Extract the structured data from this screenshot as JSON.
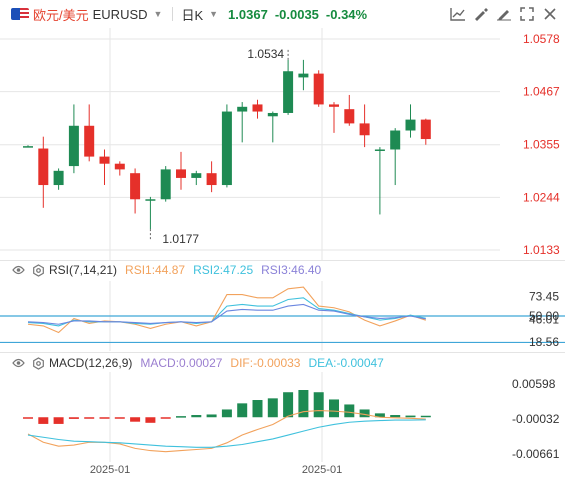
{
  "header": {
    "pair_cn": "欧元/美元",
    "pair_code": "EURUSD",
    "timeframe": "日K",
    "price": "1.0367",
    "change": "-0.0035",
    "change_pct": "-0.34%"
  },
  "colors": {
    "up": "#e5302a",
    "down": "#1e8a53",
    "rsi1": "#f2a25c",
    "rsi2": "#3fc1dd",
    "rsi3": "#6a86e0",
    "macd": "#9b7fd0",
    "dif": "#f2a25c",
    "dea": "#3fc1dd",
    "up_text": "#e5302a",
    "grid": "#e6e6e6"
  },
  "icons": [
    "compare-chart-icon",
    "draw-tool-icon",
    "pencil-icon",
    "fullscreen-icon",
    "close-icon"
  ],
  "price_axis": {
    "labels": [
      "1.0578",
      "1.0467",
      "1.0355",
      "1.0244",
      "1.0133"
    ],
    "min": 1.0133,
    "max": 1.0578
  },
  "annotations": {
    "high": "1.0534",
    "low": "1.0177"
  },
  "rsi": {
    "label": "RSI(7,14,21)",
    "rsi1_label": "RSI1:44.87",
    "rsi2_label": "RSI2:47.25",
    "rsi3_label": "RSI3:46.40",
    "axis_labels": [
      "73.45",
      "50.00",
      "46.01",
      "18.56"
    ]
  },
  "macd": {
    "label": "MACD(12,26,9)",
    "macd_label": "MACD:0.00027",
    "dif_label": "DIF:-0.00033",
    "dea_label": "DEA:-0.00047",
    "axis_labels": [
      "0.00598",
      "-0.00032",
      "-0.00661"
    ]
  },
  "time_axis": [
    "2025-01",
    "2025-01"
  ],
  "chart_data": [
    {
      "type": "candlestick",
      "title": "欧元/美元 EURUSD 日K",
      "ylim": [
        1.0133,
        1.0578
      ],
      "candles": [
        {
          "o": 1.0352,
          "h": 1.0354,
          "l": 1.035,
          "c": 1.0352
        },
        {
          "o": 1.0347,
          "h": 1.0372,
          "l": 1.0222,
          "c": 1.027
        },
        {
          "o": 1.027,
          "h": 1.0305,
          "l": 1.026,
          "c": 1.03
        },
        {
          "o": 1.031,
          "h": 1.044,
          "l": 1.0295,
          "c": 1.0395
        },
        {
          "o": 1.0395,
          "h": 1.044,
          "l": 1.032,
          "c": 1.033
        },
        {
          "o": 1.033,
          "h": 1.0345,
          "l": 1.027,
          "c": 1.0315
        },
        {
          "o": 1.0315,
          "h": 1.032,
          "l": 1.029,
          "c": 1.0303
        },
        {
          "o": 1.0295,
          "h": 1.0305,
          "l": 1.021,
          "c": 1.024
        },
        {
          "o": 1.024,
          "h": 1.0245,
          "l": 1.0177,
          "c": 1.024
        },
        {
          "o": 1.024,
          "h": 1.031,
          "l": 1.0235,
          "c": 1.0303
        },
        {
          "o": 1.0303,
          "h": 1.034,
          "l": 1.026,
          "c": 1.0285
        },
        {
          "o": 1.0285,
          "h": 1.03,
          "l": 1.027,
          "c": 1.0295
        },
        {
          "o": 1.0295,
          "h": 1.032,
          "l": 1.0255,
          "c": 1.027
        },
        {
          "o": 1.027,
          "h": 1.044,
          "l": 1.0265,
          "c": 1.0425
        },
        {
          "o": 1.0425,
          "h": 1.0445,
          "l": 1.036,
          "c": 1.0435
        },
        {
          "o": 1.044,
          "h": 1.045,
          "l": 1.041,
          "c": 1.0425
        },
        {
          "o": 1.0415,
          "h": 1.0425,
          "l": 1.036,
          "c": 1.0422
        },
        {
          "o": 1.0422,
          "h": 1.0534,
          "l": 1.0418,
          "c": 1.051
        },
        {
          "o": 1.0497,
          "h": 1.0534,
          "l": 1.047,
          "c": 1.0505
        },
        {
          "o": 1.0505,
          "h": 1.0512,
          "l": 1.0435,
          "c": 1.044
        },
        {
          "o": 1.044,
          "h": 1.0445,
          "l": 1.038,
          "c": 1.0435
        },
        {
          "o": 1.043,
          "h": 1.046,
          "l": 1.0395,
          "c": 1.04
        },
        {
          "o": 1.04,
          "h": 1.044,
          "l": 1.035,
          "c": 1.0375
        },
        {
          "o": 1.0345,
          "h": 1.035,
          "l": 1.0208,
          "c": 1.0345
        },
        {
          "o": 1.0345,
          "h": 1.039,
          "l": 1.027,
          "c": 1.0385
        },
        {
          "o": 1.0385,
          "h": 1.044,
          "l": 1.037,
          "c": 1.0408
        },
        {
          "o": 1.0408,
          "h": 1.041,
          "l": 1.0355,
          "c": 1.0367
        }
      ]
    },
    {
      "type": "line",
      "title": "RSI(7,14,21)",
      "ylim": [
        10,
        90
      ],
      "series": [
        {
          "name": "RSI1",
          "values": [
            40,
            38,
            30,
            47,
            41,
            44,
            43,
            40,
            35,
            40,
            43,
            38,
            43,
            76,
            76,
            72,
            72,
            83,
            85,
            62,
            60,
            55,
            45,
            38,
            44,
            51,
            44.87
          ]
        },
        {
          "name": "RSI2",
          "values": [
            42,
            41,
            38,
            45,
            43,
            43,
            43,
            41,
            40,
            42,
            43,
            41,
            43,
            62,
            64,
            62,
            62,
            70,
            72,
            59,
            57,
            53,
            49,
            45,
            47,
            51,
            47.25
          ]
        },
        {
          "name": "RSI3",
          "values": [
            43,
            42,
            40,
            44,
            44,
            43,
            43,
            42,
            41,
            42,
            43,
            42,
            43,
            56,
            58,
            57,
            57,
            62,
            64,
            57,
            56,
            52,
            49,
            47,
            48,
            50,
            46.4
          ]
        }
      ]
    },
    {
      "type": "bar",
      "title": "MACD(12,26,9)",
      "ylim": [
        -0.00661,
        0.00598
      ],
      "series": [
        {
          "name": "MACD",
          "values": [
            -0.00015,
            -0.0012,
            -0.0012,
            -0.0003,
            -0.0001,
            -0.0001,
            -0.0002,
            -0.0008,
            -0.001,
            -0.0002,
            0.0002,
            0.0004,
            0.0005,
            0.0014,
            0.0025,
            0.0031,
            0.0034,
            0.0045,
            0.0049,
            0.0045,
            0.0032,
            0.0023,
            0.0014,
            0.0007,
            0.0004,
            0.0003,
            0.00027
          ]
        },
        {
          "name": "DIF",
          "values": [
            -0.003,
            -0.0045,
            -0.0052,
            -0.005,
            -0.0045,
            -0.0045,
            -0.0048,
            -0.0056,
            -0.006,
            -0.0062,
            -0.006,
            -0.0058,
            -0.0056,
            -0.0046,
            -0.0032,
            -0.0022,
            -0.0013,
            0.0002,
            0.001,
            0.0012,
            0.0011,
            0.0009,
            0.0005,
            0.0,
            -0.0001,
            -0.0002,
            -0.00033
          ]
        },
        {
          "name": "DEA",
          "values": [
            -0.0032,
            -0.0036,
            -0.004,
            -0.0043,
            -0.0044,
            -0.0045,
            -0.0046,
            -0.0048,
            -0.005,
            -0.0052,
            -0.0053,
            -0.0054,
            -0.0054,
            -0.0052,
            -0.0049,
            -0.0044,
            -0.0039,
            -0.0032,
            -0.0025,
            -0.0018,
            -0.0013,
            -0.0009,
            -0.0007,
            -0.0006,
            -0.0005,
            -0.0005,
            -0.00047
          ]
        }
      ]
    }
  ]
}
